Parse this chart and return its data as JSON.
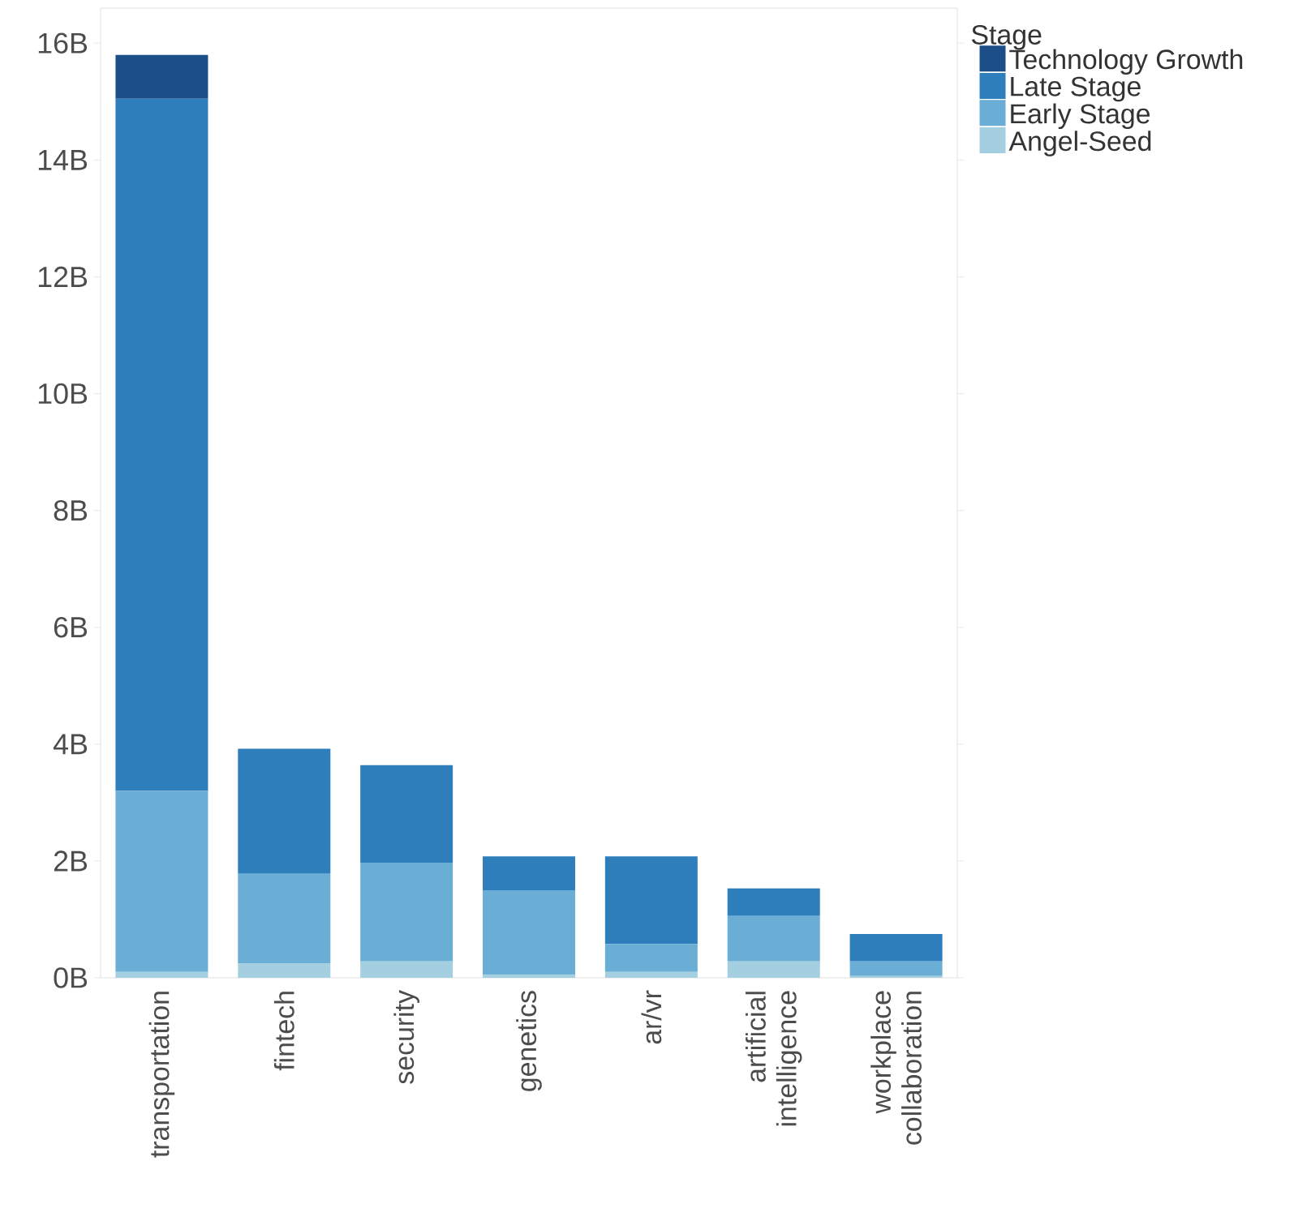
{
  "chart_data": {
    "type": "bar",
    "stacked": true,
    "legend_title": "Stage",
    "legend": "top right",
    "categories": [
      "transportation",
      "fintech",
      "security",
      "genetics",
      "ar/vr",
      "artificial intelligence",
      "workplace collaboration"
    ],
    "series": [
      {
        "name": "Angel-Seed",
        "color": "#a3cfe0",
        "values": [
          0.1,
          0.25,
          0.28,
          0.05,
          0.1,
          0.28,
          0.03
        ]
      },
      {
        "name": "Early Stage",
        "color": "#6aaed6",
        "values": [
          3.1,
          1.53,
          1.69,
          1.45,
          0.48,
          0.78,
          0.25
        ]
      },
      {
        "name": "Late Stage",
        "color": "#2f7ebc",
        "values": [
          11.85,
          2.14,
          1.67,
          0.58,
          1.5,
          0.47,
          0.47
        ]
      },
      {
        "name": "Technology Growth",
        "color": "#1c4f8a",
        "values": [
          0.75,
          null,
          null,
          null,
          null,
          null,
          null
        ]
      }
    ],
    "ylim": [
      0,
      16.6
    ],
    "yticks": [
      {
        "value": 0,
        "label": "0B"
      },
      {
        "value": 2,
        "label": "2B"
      },
      {
        "value": 4,
        "label": "4B"
      },
      {
        "value": 6,
        "label": "6B"
      },
      {
        "value": 8,
        "label": "8B"
      },
      {
        "value": 10,
        "label": "10B"
      },
      {
        "value": 12,
        "label": "12B"
      },
      {
        "value": 14,
        "label": "14B"
      },
      {
        "value": 16,
        "label": "16B"
      }
    ],
    "grid": false
  }
}
